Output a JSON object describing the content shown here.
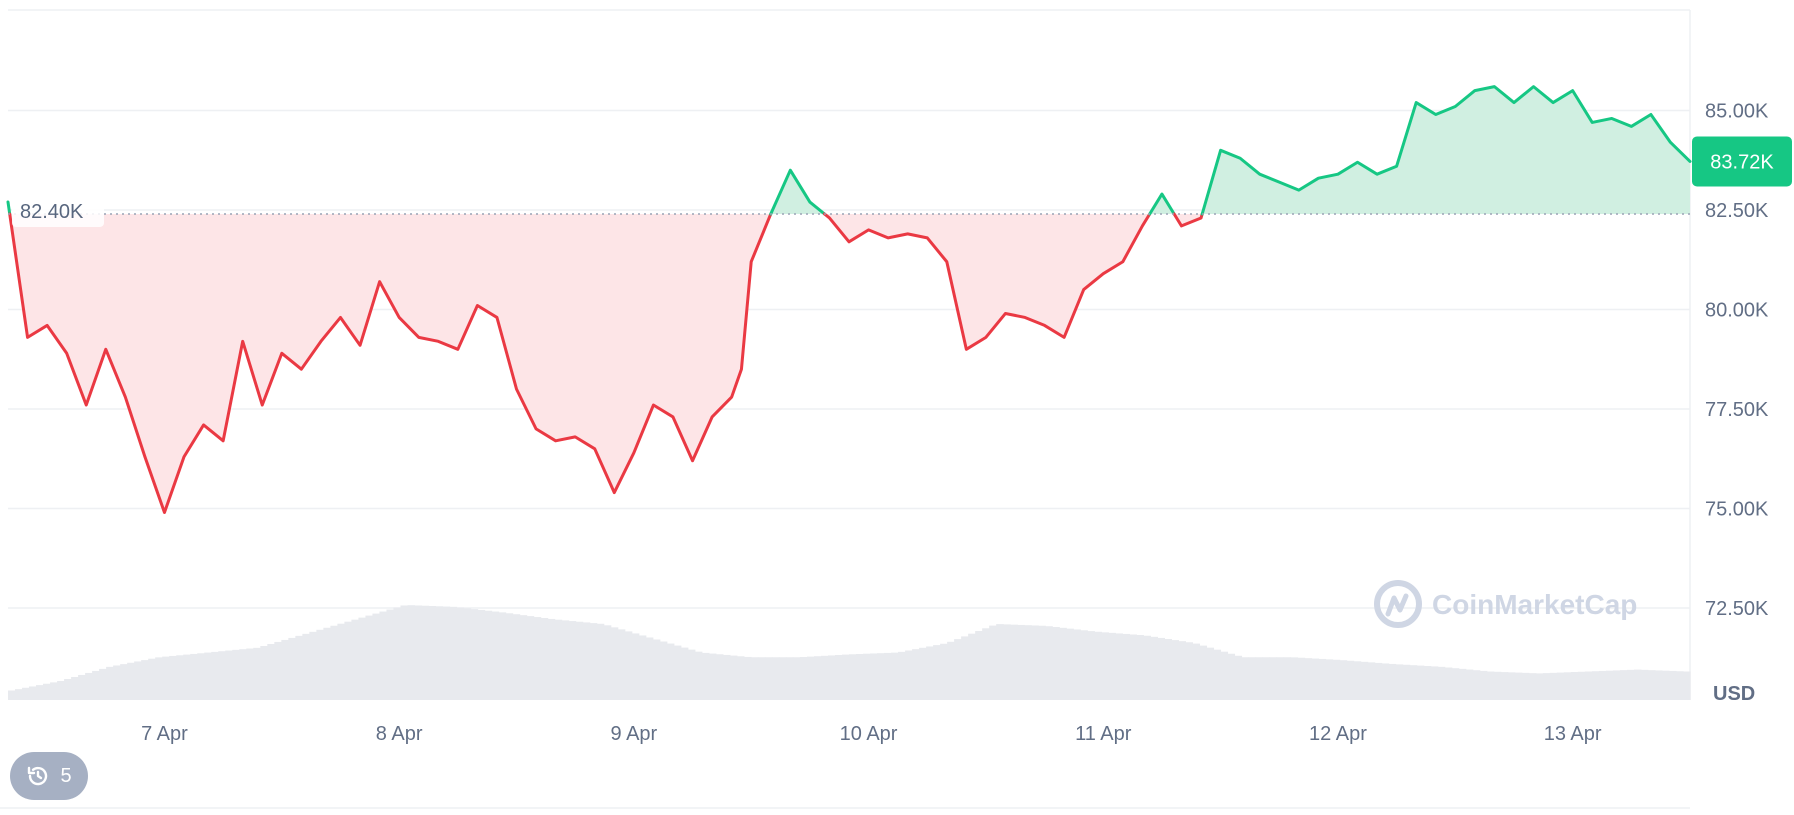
{
  "chart_data": {
    "type": "area",
    "currency": "USD",
    "reference_price": 82400,
    "reference_label": "82.40K",
    "current_price": 83720,
    "current_label": "83.72K",
    "ylim": [
      70000,
      87500
    ],
    "y_ticks": [
      {
        "value": 72500,
        "label": "72.50K"
      },
      {
        "value": 75000,
        "label": "75.00K"
      },
      {
        "value": 77500,
        "label": "77.50K"
      },
      {
        "value": 80000,
        "label": "80.00K"
      },
      {
        "value": 82500,
        "label": "82.50K"
      },
      {
        "value": 85000,
        "label": "85.00K"
      }
    ],
    "x_range": [
      "2025-04-06 08:00",
      "2025-04-13 12:00"
    ],
    "x_ticks": [
      {
        "date": "2025-04-07 00:00",
        "label": "7 Apr"
      },
      {
        "date": "2025-04-08 00:00",
        "label": "8 Apr"
      },
      {
        "date": "2025-04-09 00:00",
        "label": "9 Apr"
      },
      {
        "date": "2025-04-10 00:00",
        "label": "10 Apr"
      },
      {
        "date": "2025-04-11 00:00",
        "label": "11 Apr"
      },
      {
        "date": "2025-04-12 00:00",
        "label": "12 Apr"
      },
      {
        "date": "2025-04-13 00:00",
        "label": "13 Apr"
      }
    ],
    "series": [
      {
        "kind": "price",
        "points": [
          [
            "2025-04-06 08:00",
            82700
          ],
          [
            "2025-04-06 10:00",
            79300
          ],
          [
            "2025-04-06 12:00",
            79600
          ],
          [
            "2025-04-06 14:00",
            78900
          ],
          [
            "2025-04-06 16:00",
            77600
          ],
          [
            "2025-04-06 18:00",
            79000
          ],
          [
            "2025-04-06 20:00",
            77800
          ],
          [
            "2025-04-06 22:00",
            76300
          ],
          [
            "2025-04-07 00:00",
            74900
          ],
          [
            "2025-04-07 02:00",
            76300
          ],
          [
            "2025-04-07 04:00",
            77100
          ],
          [
            "2025-04-07 06:00",
            76700
          ],
          [
            "2025-04-07 08:00",
            79200
          ],
          [
            "2025-04-07 10:00",
            77600
          ],
          [
            "2025-04-07 12:00",
            78900
          ],
          [
            "2025-04-07 14:00",
            78500
          ],
          [
            "2025-04-07 16:00",
            79200
          ],
          [
            "2025-04-07 18:00",
            79800
          ],
          [
            "2025-04-07 20:00",
            79100
          ],
          [
            "2025-04-07 22:00",
            80700
          ],
          [
            "2025-04-08 00:00",
            79800
          ],
          [
            "2025-04-08 02:00",
            79300
          ],
          [
            "2025-04-08 04:00",
            79200
          ],
          [
            "2025-04-08 06:00",
            79000
          ],
          [
            "2025-04-08 08:00",
            80100
          ],
          [
            "2025-04-08 10:00",
            79800
          ],
          [
            "2025-04-08 12:00",
            78000
          ],
          [
            "2025-04-08 14:00",
            77000
          ],
          [
            "2025-04-08 16:00",
            76700
          ],
          [
            "2025-04-08 18:00",
            76800
          ],
          [
            "2025-04-08 20:00",
            76500
          ],
          [
            "2025-04-08 22:00",
            75400
          ],
          [
            "2025-04-09 00:00",
            76400
          ],
          [
            "2025-04-09 02:00",
            77600
          ],
          [
            "2025-04-09 04:00",
            77300
          ],
          [
            "2025-04-09 06:00",
            76200
          ],
          [
            "2025-04-09 08:00",
            77300
          ],
          [
            "2025-04-09 10:00",
            77800
          ],
          [
            "2025-04-09 11:00",
            78500
          ],
          [
            "2025-04-09 12:00",
            81200
          ],
          [
            "2025-04-09 14:00",
            82400
          ],
          [
            "2025-04-09 16:00",
            83500
          ],
          [
            "2025-04-09 18:00",
            82700
          ],
          [
            "2025-04-09 20:00",
            82300
          ],
          [
            "2025-04-09 22:00",
            81700
          ],
          [
            "2025-04-10 00:00",
            82000
          ],
          [
            "2025-04-10 02:00",
            81800
          ],
          [
            "2025-04-10 04:00",
            81900
          ],
          [
            "2025-04-10 06:00",
            81800
          ],
          [
            "2025-04-10 08:00",
            81200
          ],
          [
            "2025-04-10 10:00",
            79000
          ],
          [
            "2025-04-10 12:00",
            79300
          ],
          [
            "2025-04-10 14:00",
            79900
          ],
          [
            "2025-04-10 16:00",
            79800
          ],
          [
            "2025-04-10 18:00",
            79600
          ],
          [
            "2025-04-10 20:00",
            79300
          ],
          [
            "2025-04-10 22:00",
            80500
          ],
          [
            "2025-04-11 00:00",
            80900
          ],
          [
            "2025-04-11 02:00",
            81200
          ],
          [
            "2025-04-11 04:00",
            82100
          ],
          [
            "2025-04-11 06:00",
            82900
          ],
          [
            "2025-04-11 08:00",
            82100
          ],
          [
            "2025-04-11 10:00",
            82300
          ],
          [
            "2025-04-11 12:00",
            84000
          ],
          [
            "2025-04-11 14:00",
            83800
          ],
          [
            "2025-04-11 16:00",
            83400
          ],
          [
            "2025-04-11 18:00",
            83200
          ],
          [
            "2025-04-11 20:00",
            83000
          ],
          [
            "2025-04-11 22:00",
            83300
          ],
          [
            "2025-04-12 00:00",
            83400
          ],
          [
            "2025-04-12 02:00",
            83700
          ],
          [
            "2025-04-12 04:00",
            83400
          ],
          [
            "2025-04-12 06:00",
            83600
          ],
          [
            "2025-04-12 08:00",
            85200
          ],
          [
            "2025-04-12 10:00",
            84900
          ],
          [
            "2025-04-12 12:00",
            85100
          ],
          [
            "2025-04-12 14:00",
            85500
          ],
          [
            "2025-04-12 16:00",
            85600
          ],
          [
            "2025-04-12 18:00",
            85200
          ],
          [
            "2025-04-12 20:00",
            85600
          ],
          [
            "2025-04-12 22:00",
            85200
          ],
          [
            "2025-04-13 00:00",
            85500
          ],
          [
            "2025-04-13 02:00",
            84700
          ],
          [
            "2025-04-13 04:00",
            84800
          ],
          [
            "2025-04-13 06:00",
            84600
          ],
          [
            "2025-04-13 08:00",
            84900
          ],
          [
            "2025-04-13 10:00",
            84200
          ],
          [
            "2025-04-13 12:00",
            83720
          ]
        ]
      },
      {
        "kind": "volume",
        "relative_values": [
          0.1,
          0.2,
          0.35,
          0.45,
          0.5,
          0.55,
          0.7,
          0.85,
          1.0,
          0.98,
          0.92,
          0.85,
          0.8,
          0.65,
          0.5,
          0.45,
          0.45,
          0.48,
          0.5,
          0.6,
          0.8,
          0.78,
          0.72,
          0.68,
          0.6,
          0.45,
          0.45,
          0.42,
          0.38,
          0.35,
          0.3,
          0.28,
          0.3,
          0.32,
          0.3
        ]
      }
    ],
    "colors": {
      "up": "#16c784",
      "down": "#ea3943",
      "up_fill": "#cdeedf",
      "down_fill": "#fde4e6",
      "current_badge": "#16c784",
      "volume": "#e8eaee"
    },
    "grid": true
  },
  "watermark": {
    "text": "CoinMarketCap"
  },
  "history_badge": {
    "count": "5"
  }
}
